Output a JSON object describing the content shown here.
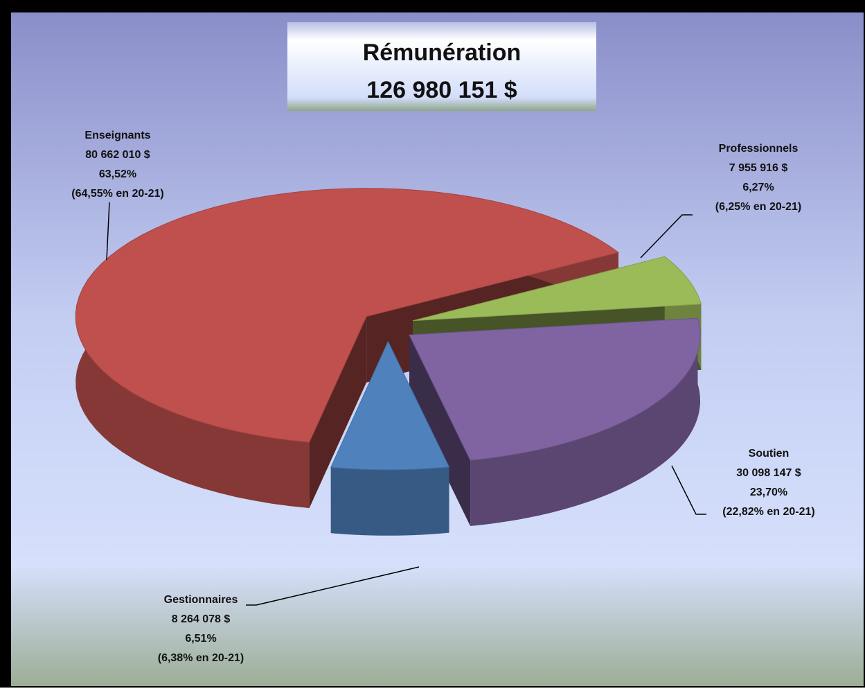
{
  "chart_data": {
    "type": "pie",
    "title": "Rémunération",
    "subtitle": "126 980 151 $",
    "categories": [
      "Professionnels",
      "Soutien",
      "Gestionnaires",
      "Enseignants"
    ],
    "values": [
      6.27,
      23.7,
      6.51,
      63.52
    ],
    "value_labels": [
      "6,27%",
      "23,70%",
      "6,51%",
      "63,52%"
    ],
    "amount_labels": [
      "7 955 916 $",
      "30 098 147 $",
      "8 264 078 $",
      "80 662 010 $"
    ],
    "previous_labels": [
      "(6,25% en  20-21)",
      "(22,82% en  20-21)",
      "(6,38% en  20-21)",
      "(64,55% en  20-21)"
    ],
    "colors": [
      "#9bbb59",
      "#8064a2",
      "#4f81bd",
      "#c0504d"
    ]
  }
}
